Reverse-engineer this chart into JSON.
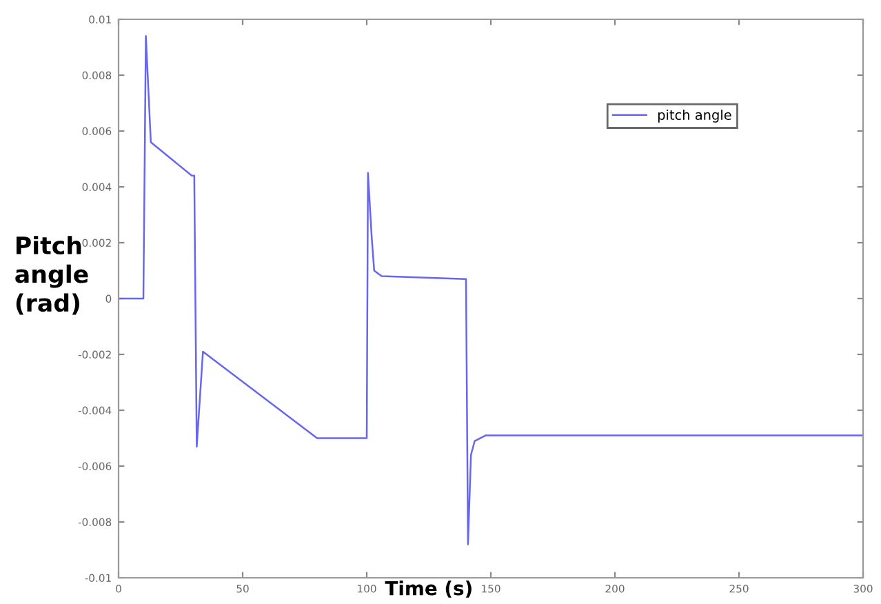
{
  "chart_data": {
    "type": "line",
    "xlabel": "Time (s)",
    "ylabel": "Pitch angle (rad)",
    "xlim": [
      0,
      300
    ],
    "xticks": [
      0,
      50,
      100,
      150,
      200,
      250,
      300
    ],
    "ylim": [
      -0.01,
      0.01
    ],
    "yticks": [
      -0.01,
      -0.008,
      -0.006,
      -0.004,
      -0.002,
      0,
      0.002,
      0.004,
      0.006,
      0.008,
      0.01
    ],
    "legend": "top right",
    "grid": false,
    "series": [
      {
        "name": "pitch angle",
        "color": "#6666ee",
        "x": [
          0,
          10,
          11,
          13,
          29.5,
          30.5,
          31.5,
          34,
          80,
          100,
          100.5,
          102,
          103,
          106,
          140,
          140.8,
          142,
          143.5,
          148,
          300
        ],
        "values": [
          0,
          0,
          0.0094,
          0.0056,
          0.0044,
          0.0044,
          -0.0053,
          -0.0019,
          -0.005,
          -0.005,
          0.0045,
          0.0022,
          0.001,
          0.0008,
          0.0007,
          -0.0088,
          -0.0056,
          -0.0051,
          -0.0049,
          -0.0049
        ]
      }
    ]
  }
}
